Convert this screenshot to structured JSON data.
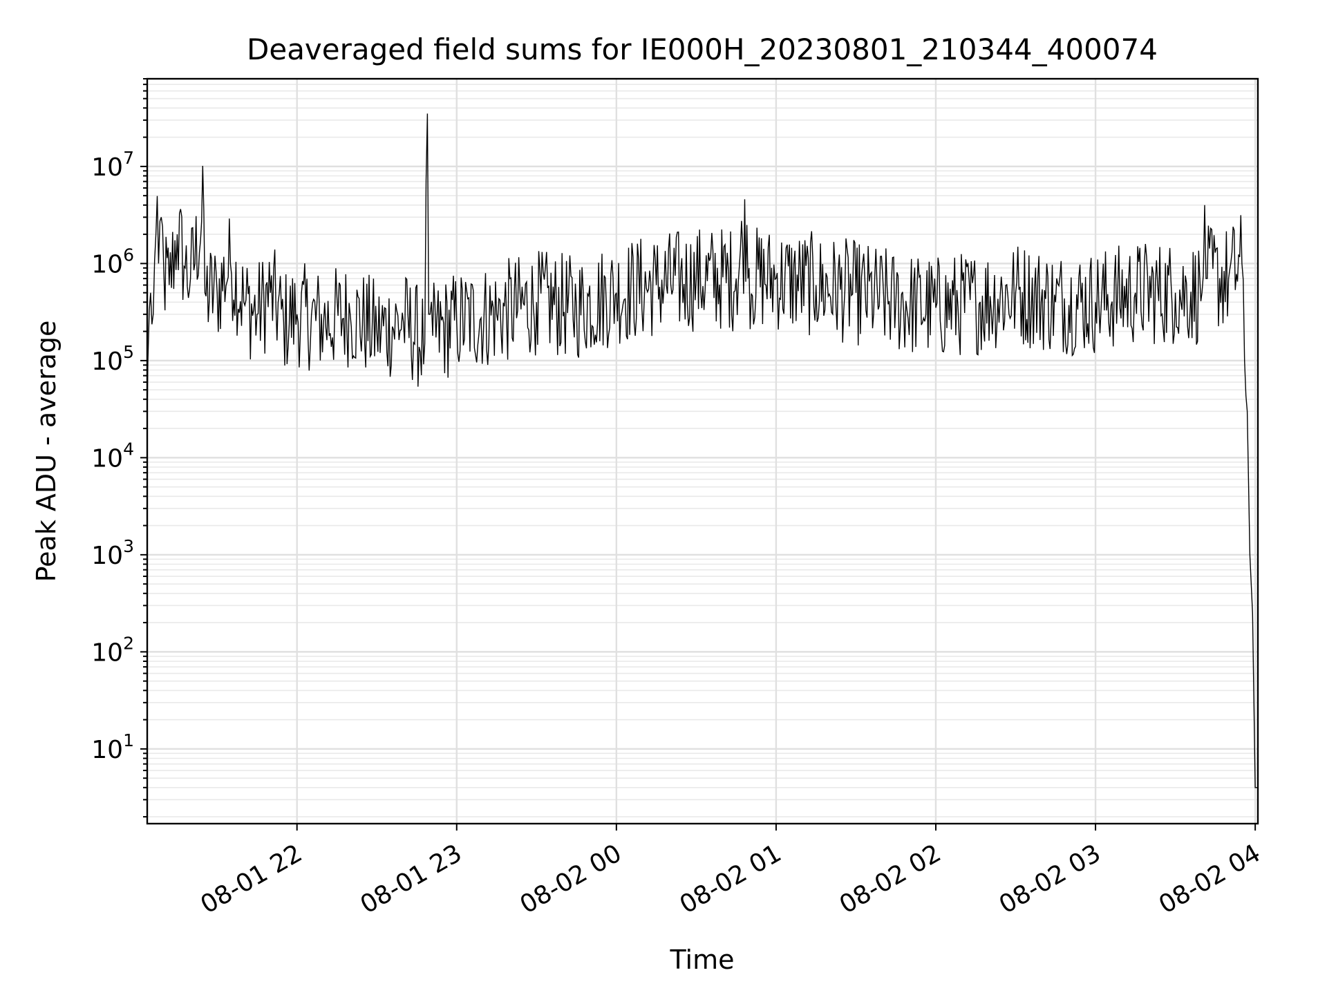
{
  "chart_data": {
    "type": "line",
    "title": "Deaveraged field sums for IE000H_20230801_210344_400074",
    "xlabel": "Time",
    "ylabel": "Peak ADU - average",
    "yscale": "log",
    "ylim": [
      1.7,
      80000000
    ],
    "xlim": [
      "2023-08-01 21:03:44",
      "2023-08-02 04:01:00"
    ],
    "grid": "both (major and minor)",
    "x_ticks": [
      {
        "t": "2023-08-01 22:00",
        "label": "08-01 22"
      },
      {
        "t": "2023-08-01 23:00",
        "label": "08-01 23"
      },
      {
        "t": "2023-08-02 00:00",
        "label": "08-02 00"
      },
      {
        "t": "2023-08-02 01:00",
        "label": "08-02 01"
      },
      {
        "t": "2023-08-02 02:00",
        "label": "08-02 02"
      },
      {
        "t": "2023-08-02 03:00",
        "label": "08-02 03"
      },
      {
        "t": "2023-08-02 04:00",
        "label": "08-02 04"
      }
    ],
    "y_ticks": [
      {
        "value": 10,
        "base": "10",
        "exp": "1"
      },
      {
        "value": 100,
        "base": "10",
        "exp": "2"
      },
      {
        "value": 1000,
        "base": "10",
        "exp": "3"
      },
      {
        "value": 10000,
        "base": "10",
        "exp": "4"
      },
      {
        "value": 100000,
        "base": "10",
        "exp": "5"
      },
      {
        "value": 1000000,
        "base": "10",
        "exp": "6"
      },
      {
        "value": 10000000,
        "base": "10",
        "exp": "7"
      }
    ],
    "line_color": "#000000",
    "series": [
      {
        "x": [
          "2023-08-01 21:03:44",
          "2023-08-01 21:04",
          "2023-08-01 21:05",
          "2023-08-01 21:06",
          "2023-08-01 21:07",
          "2023-08-01 21:08",
          "2023-08-01 21:09",
          "2023-08-01 21:10",
          "2023-08-01 21:12",
          "2023-08-01 21:15",
          "2023-08-01 21:18",
          "2023-08-01 21:20",
          "2023-08-01 21:25",
          "2023-08-01 21:30",
          "2023-08-01 21:35",
          "2023-08-01 21:40",
          "2023-08-01 21:45",
          "2023-08-01 21:50",
          "2023-08-01 21:55",
          "2023-08-01 22:00",
          "2023-08-01 22:10",
          "2023-08-01 22:20",
          "2023-08-01 22:30",
          "2023-08-01 22:40",
          "2023-08-01 22:48",
          "2023-08-01 22:49",
          "2023-08-01 22:50",
          "2023-08-01 22:51",
          "2023-08-01 23:00",
          "2023-08-01 23:15",
          "2023-08-01 23:30",
          "2023-08-01 23:45",
          "2023-08-02 00:00",
          "2023-08-02 00:15",
          "2023-08-02 00:30",
          "2023-08-02 00:45",
          "2023-08-02 00:49",
          "2023-08-02 01:00",
          "2023-08-02 01:15",
          "2023-08-02 01:30",
          "2023-08-02 01:45",
          "2023-08-02 02:00",
          "2023-08-02 02:15",
          "2023-08-02 02:30",
          "2023-08-02 02:45",
          "2023-08-02 03:00",
          "2023-08-02 03:15",
          "2023-08-02 03:30",
          "2023-08-02 03:40",
          "2023-08-02 03:41",
          "2023-08-02 03:42",
          "2023-08-02 03:50",
          "2023-08-02 03:55",
          "2023-08-02 03:56",
          "2023-08-02 03:57",
          "2023-08-02 03:58",
          "2023-08-02 03:59",
          "2023-08-02 04:00",
          "2023-08-02 04:01"
        ],
        "y": [
          25000,
          100000,
          500000,
          300000,
          2000000,
          1000000,
          3000000,
          800000,
          600000,
          2000000,
          900000,
          700000,
          3500000,
          500000,
          1000000,
          400000,
          300000,
          500000,
          250000,
          300000,
          250000,
          300000,
          200000,
          250000,
          150000,
          35000000,
          300000,
          180000,
          250000,
          300000,
          400000,
          350000,
          500000,
          600000,
          700000,
          700000,
          2500000,
          700000,
          600000,
          500000,
          400000,
          350000,
          400000,
          500000,
          400000,
          400000,
          500000,
          500000,
          500000,
          4000000,
          700000,
          700000,
          1000000,
          100000,
          30000,
          1000,
          250,
          4,
          4
        ]
      }
    ]
  }
}
